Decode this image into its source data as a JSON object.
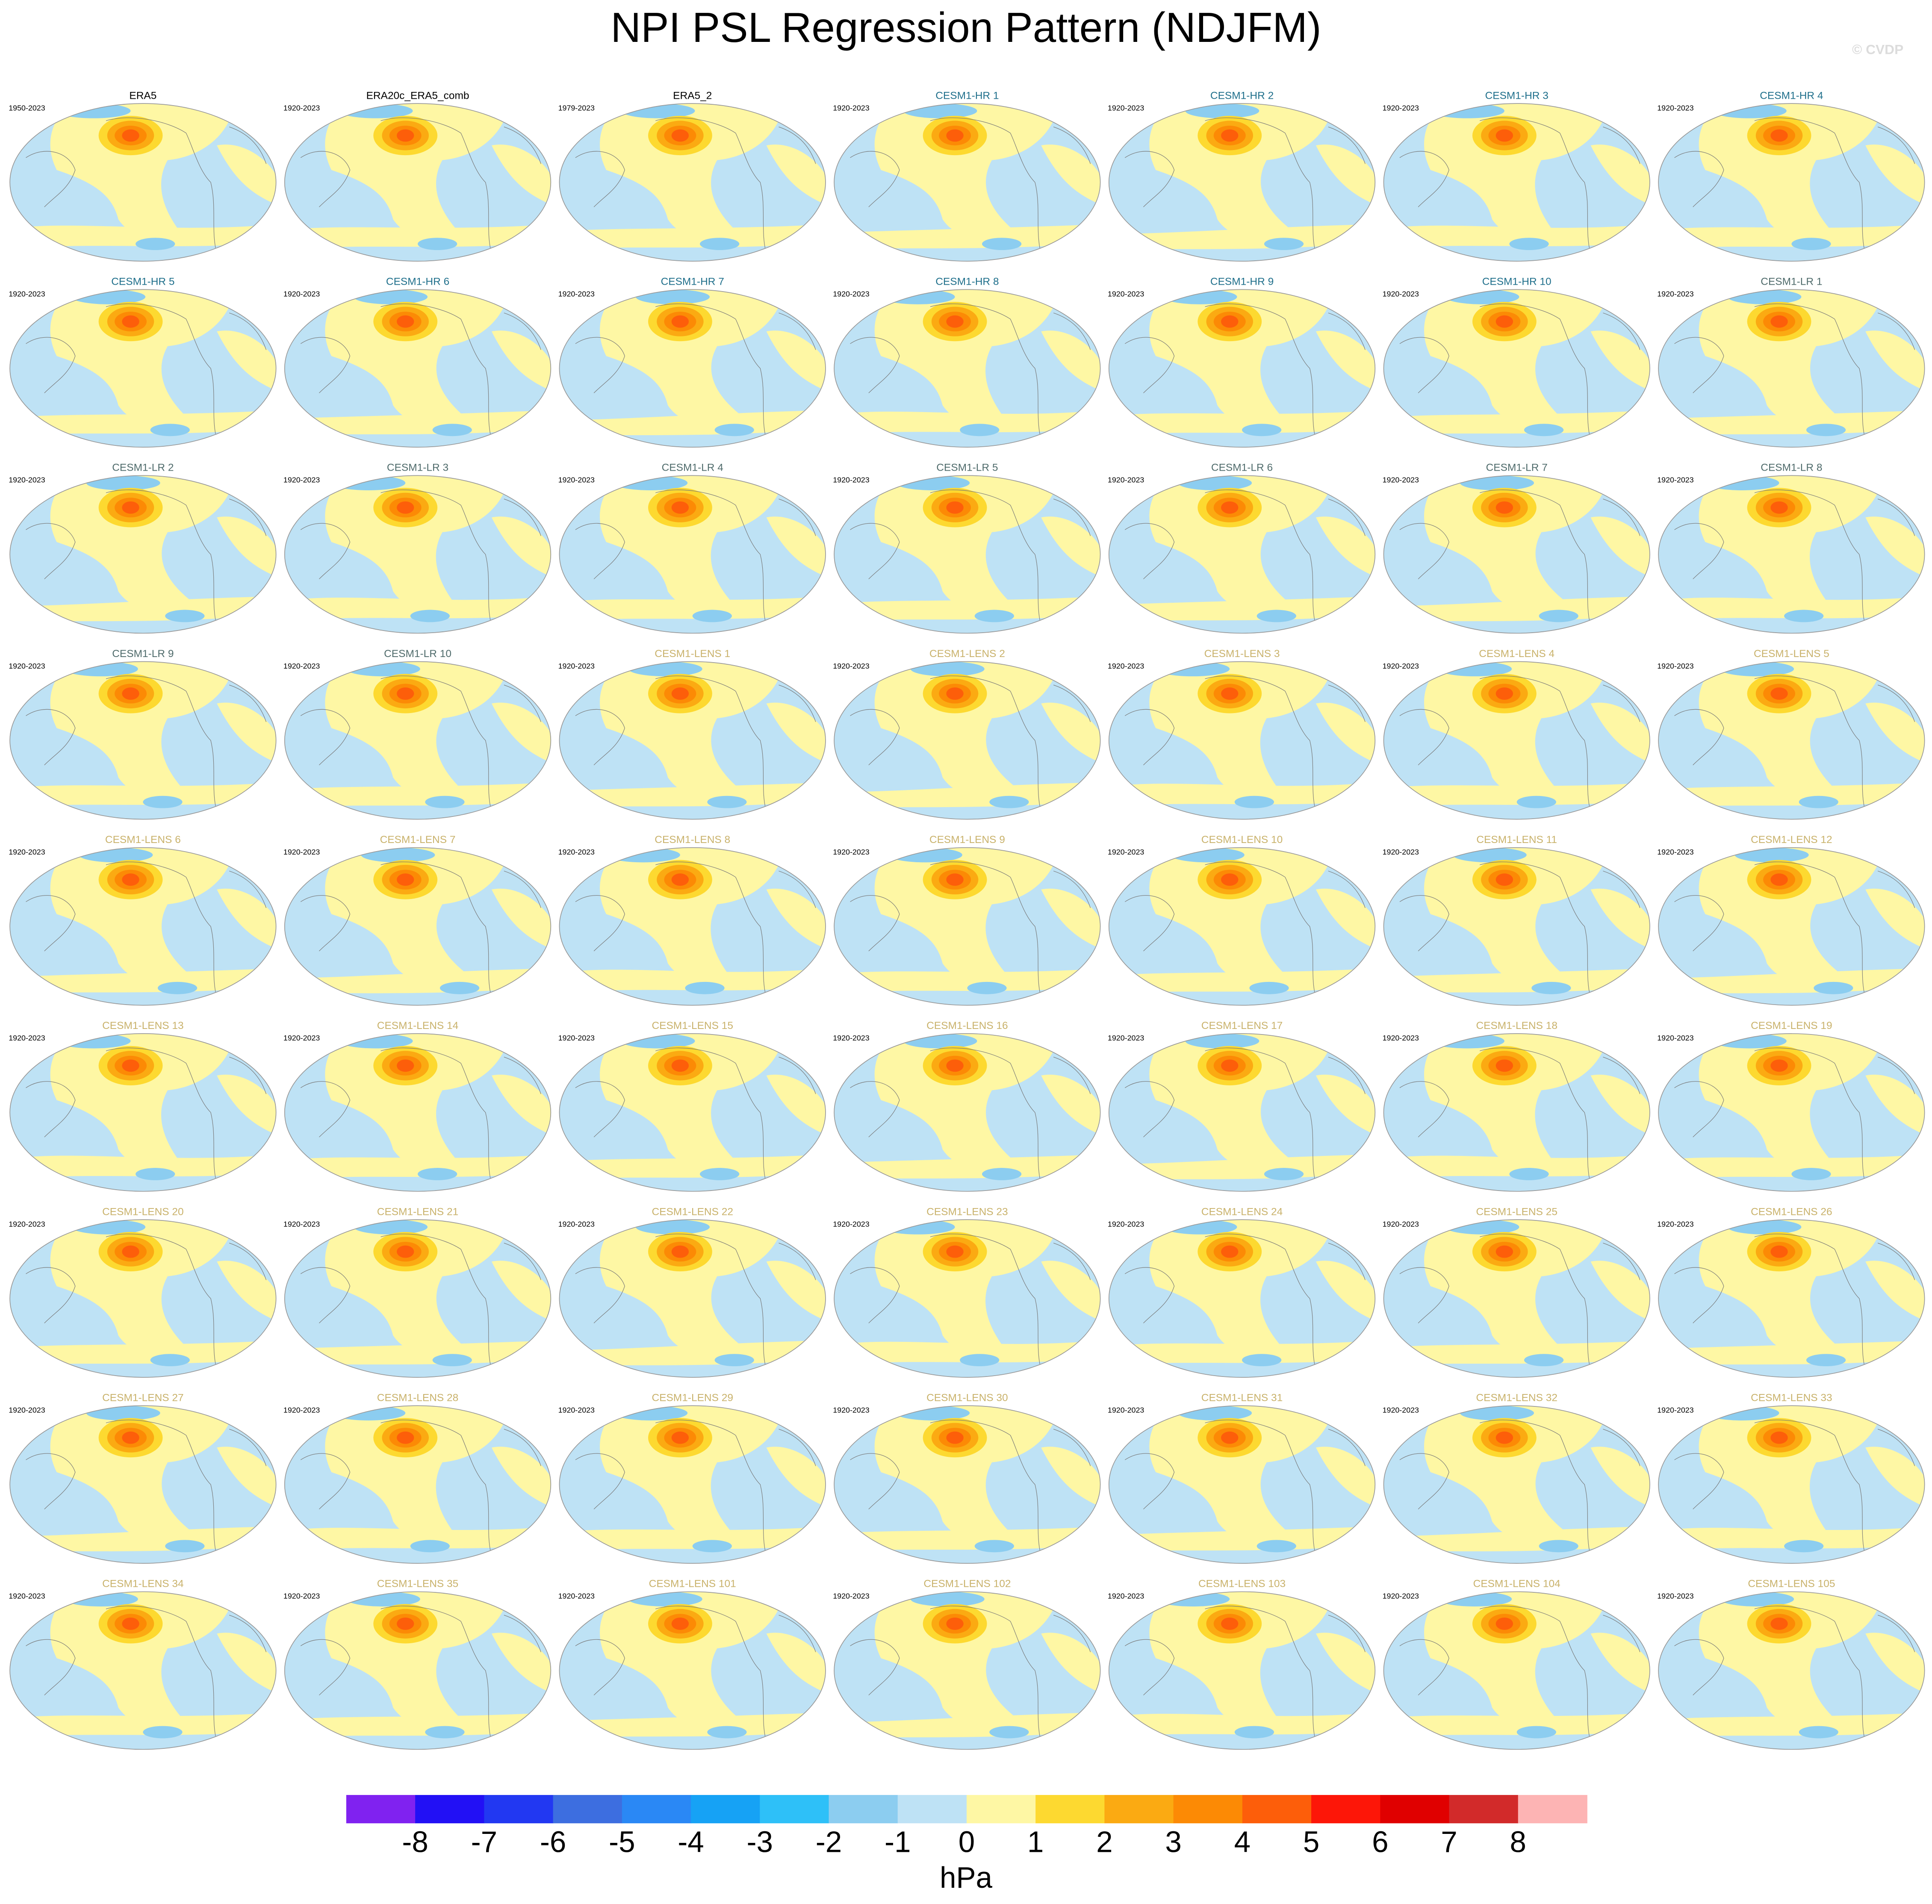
{
  "header": {
    "title": "NPI PSL Regression Pattern (NDJFM)",
    "watermark": "© CVDP"
  },
  "panels": [
    {
      "title": "ERA5",
      "years": "1950-2023",
      "title_color": "#000000"
    },
    {
      "title": "ERA20c_ERA5_comb",
      "years": "1920-2023",
      "title_color": "#000000"
    },
    {
      "title": "ERA5_2",
      "years": "1979-2023",
      "title_color": "#000000"
    },
    {
      "title": "CESM1-HR 1",
      "years": "1920-2023",
      "title_color": "#1f6f8b"
    },
    {
      "title": "CESM1-HR 2",
      "years": "1920-2023",
      "title_color": "#1f6f8b"
    },
    {
      "title": "CESM1-HR 3",
      "years": "1920-2023",
      "title_color": "#1f6f8b"
    },
    {
      "title": "CESM1-HR 4",
      "years": "1920-2023",
      "title_color": "#1f6f8b"
    },
    {
      "title": "CESM1-HR 5",
      "years": "1920-2023",
      "title_color": "#1f6f8b"
    },
    {
      "title": "CESM1-HR 6",
      "years": "1920-2023",
      "title_color": "#1f6f8b"
    },
    {
      "title": "CESM1-HR 7",
      "years": "1920-2023",
      "title_color": "#1f6f8b"
    },
    {
      "title": "CESM1-HR 8",
      "years": "1920-2023",
      "title_color": "#1f6f8b"
    },
    {
      "title": "CESM1-HR 9",
      "years": "1920-2023",
      "title_color": "#1f6f8b"
    },
    {
      "title": "CESM1-HR 10",
      "years": "1920-2023",
      "title_color": "#1f6f8b"
    },
    {
      "title": "CESM1-LR 1",
      "years": "1920-2023",
      "title_color": "#4f6b6b"
    },
    {
      "title": "CESM1-LR 2",
      "years": "1920-2023",
      "title_color": "#4f6b6b"
    },
    {
      "title": "CESM1-LR 3",
      "years": "1920-2023",
      "title_color": "#4f6b6b"
    },
    {
      "title": "CESM1-LR 4",
      "years": "1920-2023",
      "title_color": "#4f6b6b"
    },
    {
      "title": "CESM1-LR 5",
      "years": "1920-2023",
      "title_color": "#4f6b6b"
    },
    {
      "title": "CESM1-LR 6",
      "years": "1920-2023",
      "title_color": "#4f6b6b"
    },
    {
      "title": "CESM1-LR 7",
      "years": "1920-2023",
      "title_color": "#4f6b6b"
    },
    {
      "title": "CESM1-LR 8",
      "years": "1920-2023",
      "title_color": "#4f6b6b"
    },
    {
      "title": "CESM1-LR 9",
      "years": "1920-2023",
      "title_color": "#4f6b6b"
    },
    {
      "title": "CESM1-LR 10",
      "years": "1920-2023",
      "title_color": "#4f6b6b"
    },
    {
      "title": "CESM1-LENS 1",
      "years": "1920-2023",
      "title_color": "#c9b26b"
    },
    {
      "title": "CESM1-LENS 2",
      "years": "1920-2023",
      "title_color": "#c9b26b"
    },
    {
      "title": "CESM1-LENS 3",
      "years": "1920-2023",
      "title_color": "#c9b26b"
    },
    {
      "title": "CESM1-LENS 4",
      "years": "1920-2023",
      "title_color": "#c9b26b"
    },
    {
      "title": "CESM1-LENS 5",
      "years": "1920-2023",
      "title_color": "#c9b26b"
    },
    {
      "title": "CESM1-LENS 6",
      "years": "1920-2023",
      "title_color": "#c9b26b"
    },
    {
      "title": "CESM1-LENS 7",
      "years": "1920-2023",
      "title_color": "#c9b26b"
    },
    {
      "title": "CESM1-LENS 8",
      "years": "1920-2023",
      "title_color": "#c9b26b"
    },
    {
      "title": "CESM1-LENS 9",
      "years": "1920-2023",
      "title_color": "#c9b26b"
    },
    {
      "title": "CESM1-LENS 10",
      "years": "1920-2023",
      "title_color": "#c9b26b"
    },
    {
      "title": "CESM1-LENS 11",
      "years": "1920-2023",
      "title_color": "#c9b26b"
    },
    {
      "title": "CESM1-LENS 12",
      "years": "1920-2023",
      "title_color": "#c9b26b"
    },
    {
      "title": "CESM1-LENS 13",
      "years": "1920-2023",
      "title_color": "#c9b26b"
    },
    {
      "title": "CESM1-LENS 14",
      "years": "1920-2023",
      "title_color": "#c9b26b"
    },
    {
      "title": "CESM1-LENS 15",
      "years": "1920-2023",
      "title_color": "#c9b26b"
    },
    {
      "title": "CESM1-LENS 16",
      "years": "1920-2023",
      "title_color": "#c9b26b"
    },
    {
      "title": "CESM1-LENS 17",
      "years": "1920-2023",
      "title_color": "#c9b26b"
    },
    {
      "title": "CESM1-LENS 18",
      "years": "1920-2023",
      "title_color": "#c9b26b"
    },
    {
      "title": "CESM1-LENS 19",
      "years": "1920-2023",
      "title_color": "#c9b26b"
    },
    {
      "title": "CESM1-LENS 20",
      "years": "1920-2023",
      "title_color": "#c9b26b"
    },
    {
      "title": "CESM1-LENS 21",
      "years": "1920-2023",
      "title_color": "#c9b26b"
    },
    {
      "title": "CESM1-LENS 22",
      "years": "1920-2023",
      "title_color": "#c9b26b"
    },
    {
      "title": "CESM1-LENS 23",
      "years": "1920-2023",
      "title_color": "#c9b26b"
    },
    {
      "title": "CESM1-LENS 24",
      "years": "1920-2023",
      "title_color": "#c9b26b"
    },
    {
      "title": "CESM1-LENS 25",
      "years": "1920-2023",
      "title_color": "#c9b26b"
    },
    {
      "title": "CESM1-LENS 26",
      "years": "1920-2023",
      "title_color": "#c9b26b"
    },
    {
      "title": "CESM1-LENS 27",
      "years": "1920-2023",
      "title_color": "#c9b26b"
    },
    {
      "title": "CESM1-LENS 28",
      "years": "1920-2023",
      "title_color": "#c9b26b"
    },
    {
      "title": "CESM1-LENS 29",
      "years": "1920-2023",
      "title_color": "#c9b26b"
    },
    {
      "title": "CESM1-LENS 30",
      "years": "1920-2023",
      "title_color": "#c9b26b"
    },
    {
      "title": "CESM1-LENS 31",
      "years": "1920-2023",
      "title_color": "#c9b26b"
    },
    {
      "title": "CESM1-LENS 32",
      "years": "1920-2023",
      "title_color": "#c9b26b"
    },
    {
      "title": "CESM1-LENS 33",
      "years": "1920-2023",
      "title_color": "#c9b26b"
    },
    {
      "title": "CESM1-LENS 34",
      "years": "1920-2023",
      "title_color": "#c9b26b"
    },
    {
      "title": "CESM1-LENS 35",
      "years": "1920-2023",
      "title_color": "#c9b26b"
    },
    {
      "title": "CESM1-LENS 101",
      "years": "1920-2023",
      "title_color": "#c9b26b"
    },
    {
      "title": "CESM1-LENS 102",
      "years": "1920-2023",
      "title_color": "#c9b26b"
    },
    {
      "title": "CESM1-LENS 103",
      "years": "1920-2023",
      "title_color": "#c9b26b"
    },
    {
      "title": "CESM1-LENS 104",
      "years": "1920-2023",
      "title_color": "#c9b26b"
    },
    {
      "title": "CESM1-LENS 105",
      "years": "1920-2023",
      "title_color": "#c9b26b"
    }
  ],
  "colorbar": {
    "colors": [
      "#8022f0",
      "#2210f5",
      "#2238f2",
      "#3d6ee0",
      "#2a88f5",
      "#16a2f5",
      "#2ec0f8",
      "#8ccdf0",
      "#bee2f5",
      "#fef7a4",
      "#fdd930",
      "#fbaa12",
      "#fc8a05",
      "#fd5e0a",
      "#fd1608",
      "#e00000",
      "#d22a2a",
      "#fdb4b4"
    ],
    "ticks": [
      -8,
      -7,
      -6,
      -5,
      -4,
      -3,
      -2,
      -1,
      0,
      1,
      2,
      3,
      4,
      5,
      6,
      7,
      8
    ],
    "unit": "hPa"
  }
}
